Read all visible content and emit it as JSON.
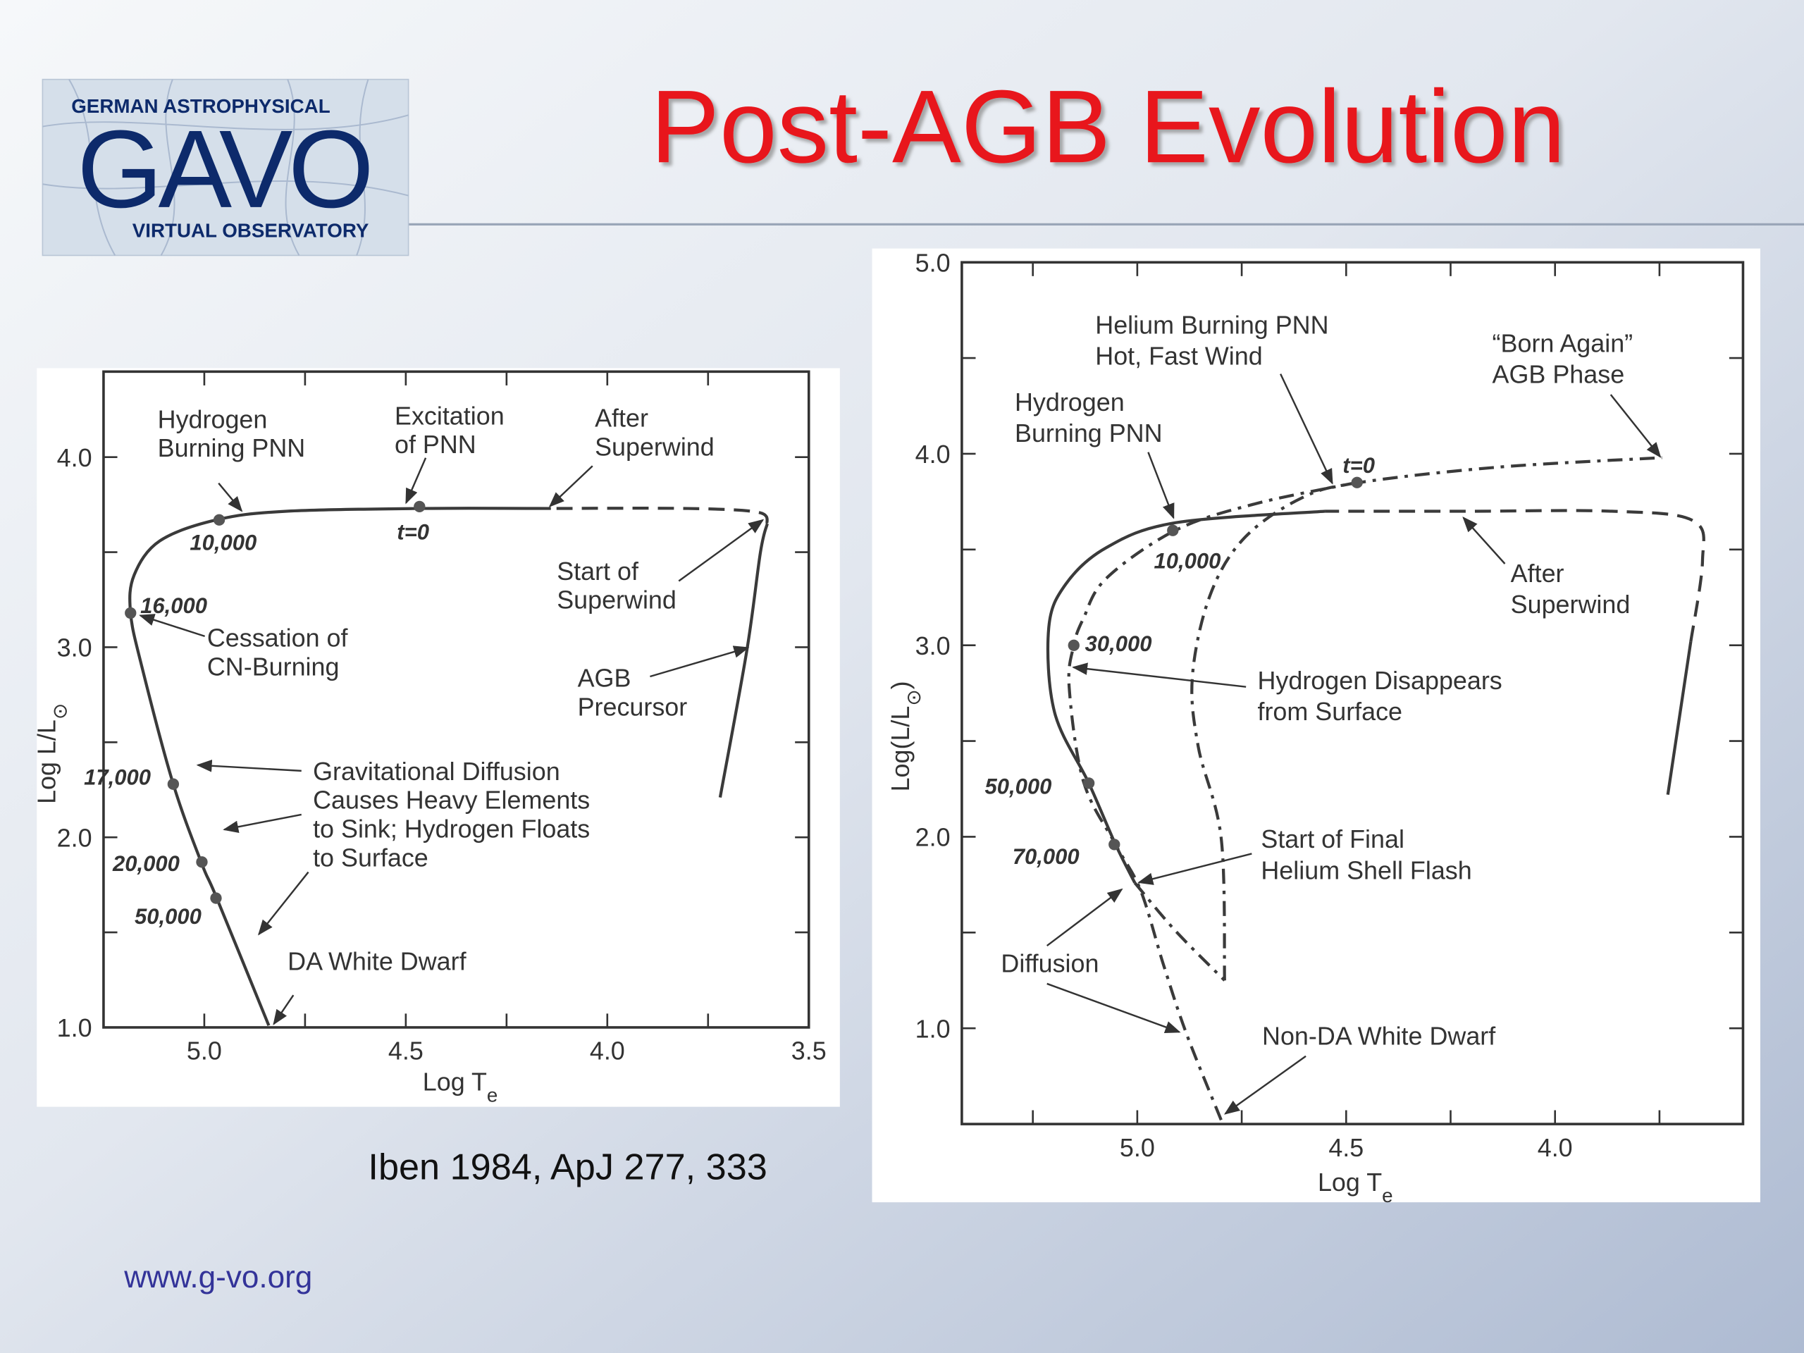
{
  "slide": {
    "title": "Post-AGB Evolution",
    "citation": "Iben 1984, ApJ 277, 333",
    "url": "www.g-vo.org"
  },
  "logo": {
    "top": "GERMAN ASTROPHYSICAL",
    "main": "GAVO",
    "bottom": "VIRTUAL OBSERVATORY"
  },
  "chart_data": [
    {
      "type": "line",
      "xlabel": [
        "Log T",
        "e"
      ],
      "ylabel": [
        "Log L/L",
        "⊙"
      ],
      "xlim": [
        5.25,
        3.5
      ],
      "ylim": [
        1.0,
        4.45
      ],
      "xticks": [
        {
          "value": 5,
          "label": "5.0"
        },
        4.5,
        {
          "value": 4,
          "label": "4.0"
        },
        3.5
      ],
      "yticks": [
        {
          "value": 1,
          "label": "1.0"
        },
        {
          "value": 2,
          "label": "2.0"
        },
        {
          "value": 3,
          "label": "3.0"
        },
        {
          "value": 4,
          "label": "4.0"
        }
      ],
      "xticks_minor": [
        4.75,
        4.25,
        3.75
      ],
      "yticks_minor": [
        1.5,
        2.5,
        3.5
      ],
      "series": [
        {
          "style": "solid",
          "color": "#3a3a3a",
          "x": [
            3.72,
            3.654,
            3.62,
            3.603
          ],
          "values": [
            2.21,
            2.98,
            3.5,
            3.65
          ]
        },
        {
          "style": "dashed",
          "color": "#3a3a3a",
          "x": [
            3.603,
            3.626,
            3.8,
            4.14
          ],
          "values": [
            3.65,
            3.71,
            3.73,
            3.73
          ]
        },
        {
          "style": "solid",
          "color": "#3a3a3a",
          "x": [
            4.14,
            4.466,
            4.8,
            4.97,
            5.11,
            5.174,
            5.183,
            5.154,
            5.077,
            5.006,
            4.969,
            4.84
          ],
          "values": [
            3.73,
            3.73,
            3.715,
            3.67,
            3.56,
            3.38,
            3.18,
            2.89,
            2.28,
            1.86,
            1.68,
            1.01
          ]
        }
      ],
      "markers": {
        "x": [
          4.963,
          4.466,
          5.183,
          5.077,
          5.006,
          4.971
        ],
        "values": [
          3.67,
          3.74,
          3.18,
          2.28,
          1.87,
          1.68
        ],
        "labels": [
          "10,000",
          "t=0",
          "16,000",
          "17,000",
          "20,000",
          "50,000"
        ]
      },
      "annotations": [
        {
          "lines": [
            "Hydrogen",
            "Burning PNN"
          ]
        },
        {
          "lines": [
            "Excitation",
            "of PNN"
          ]
        },
        {
          "lines": [
            "After",
            "Superwind"
          ]
        },
        {
          "lines": [
            "Start of",
            "Superwind"
          ]
        },
        {
          "lines": [
            "Cessation of",
            "CN-Burning"
          ]
        },
        {
          "lines": [
            "AGB",
            "Precursor"
          ]
        },
        {
          "lines": [
            "Gravitational Diffusion",
            "Causes Heavy Elements",
            "to Sink; Hydrogen Floats",
            "to Surface"
          ]
        },
        {
          "lines": [
            "DA White Dwarf"
          ]
        }
      ]
    },
    {
      "type": "line",
      "xlabel": [
        "Log T",
        "e"
      ],
      "ylabel": [
        "Log(L/L",
        "⊙",
        ")"
      ],
      "xlim": [
        5.42,
        3.55
      ],
      "ylim": [
        0.5,
        5.0
      ],
      "xticks": [
        {
          "value": 5,
          "label": "5.0"
        },
        4.5,
        {
          "value": 4,
          "label": "4.0"
        }
      ],
      "yticks": [
        {
          "value": 1,
          "label": "1.0"
        },
        {
          "value": 2,
          "label": "2.0"
        },
        {
          "value": 3,
          "label": "3.0"
        },
        {
          "value": 4,
          "label": "4.0"
        },
        {
          "value": 5,
          "label": "5.0"
        }
      ],
      "xticks_minor": [
        5.25,
        4.75,
        4.25,
        3.75
      ],
      "yticks_minor": [
        1.5,
        2.5,
        3.5,
        4.5
      ],
      "series": [
        {
          "style": "solid",
          "color": "#3a3a3a",
          "x": [
            3.73,
            3.675
          ],
          "values": [
            2.22,
            3.02
          ]
        },
        {
          "style": "dashed",
          "color": "#3a3a3a",
          "x": [
            3.675,
            3.647,
            3.669,
            3.862,
            4.22,
            4.551
          ],
          "values": [
            3.02,
            3.44,
            3.65,
            3.7,
            3.7,
            3.7
          ]
        },
        {
          "style": "solid",
          "color": "#3a3a3a",
          "x": [
            4.551,
            4.909,
            5.074,
            5.171,
            5.212,
            5.198,
            5.116,
            5.052,
            5.006
          ],
          "values": [
            3.7,
            3.64,
            3.51,
            3.32,
            3.09,
            2.65,
            2.28,
            1.96,
            1.76
          ]
        },
        {
          "style": "dashdot",
          "color": "#3a3a3a",
          "x": [
            4.791,
            4.799,
            4.854,
            4.868,
            4.826,
            4.744,
            4.606,
            4.468,
            4.138,
            3.744
          ],
          "values": [
            1.25,
            1.99,
            2.47,
            2.84,
            3.26,
            3.56,
            3.77,
            3.85,
            3.93,
            3.98
          ]
        },
        {
          "style": "dashdot",
          "color": "#3a3a3a",
          "x": [
            4.474,
            4.716,
            4.909,
            5.074,
            5.129,
            5.152,
            5.163,
            5.129,
            5.052,
            4.992,
            4.937,
            4.882,
            4.799
          ],
          "values": [
            3.85,
            3.74,
            3.6,
            3.35,
            3.14,
            3.0,
            2.78,
            2.29,
            1.96,
            1.72,
            1.33,
            0.97,
            0.52
          ]
        },
        {
          "style": "dashdot",
          "color": "#3a3a3a",
          "x": [
            5.006,
            4.909,
            4.791
          ],
          "values": [
            1.76,
            1.51,
            1.25
          ]
        }
      ],
      "markers": {
        "x": [
          4.915,
          4.474,
          5.152,
          5.116,
          5.055
        ],
        "values": [
          3.6,
          3.85,
          3.0,
          2.28,
          1.96
        ],
        "labels": [
          "10,000",
          "t=0",
          "30,000",
          "50,000",
          "70,000"
        ]
      },
      "annotations": [
        {
          "lines": [
            "Helium Burning PNN",
            "Hot, Fast Wind"
          ]
        },
        {
          "lines": [
            "“Born Again”",
            "AGB Phase"
          ]
        },
        {
          "lines": [
            "Hydrogen",
            "Burning PNN"
          ]
        },
        {
          "lines": [
            "After",
            "Superwind"
          ]
        },
        {
          "lines": [
            "Hydrogen Disappears",
            "from Surface"
          ]
        },
        {
          "lines": [
            "Start of Final",
            "Helium Shell Flash"
          ]
        },
        {
          "lines": [
            "Diffusion"
          ]
        },
        {
          "lines": [
            "Non-DA White Dwarf"
          ]
        }
      ]
    }
  ]
}
